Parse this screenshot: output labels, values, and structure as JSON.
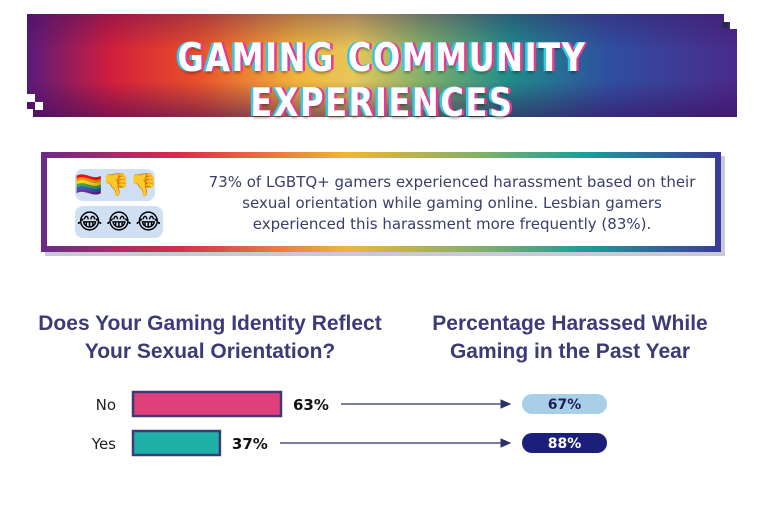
{
  "banner": {
    "title": "GAMING COMMUNITY EXPERIENCES"
  },
  "stat": {
    "emojis_row1": [
      "🏳️‍🌈",
      "👎",
      "👎"
    ],
    "emojis_row2": [
      "😂",
      "😂",
      "😂"
    ],
    "text": "73% of LGBTQ+ gamers experienced harassment based on their sexual orientation while gaming online. Lesbian gamers experienced this harassment more frequently (83%)."
  },
  "headings": {
    "left": "Does Your Gaming Identity Reflect Your Sexual Orientation?",
    "right": "Percentage Harassed While Gaming in the Past Year"
  },
  "chart_data": {
    "type": "bar",
    "categories": [
      "No",
      "Yes"
    ],
    "series": [
      {
        "values": [
          63,
          37
        ],
        "labels": [
          "63%",
          "37%"
        ],
        "colors": [
          "#e0407a",
          "#1fb0a8"
        ]
      },
      {
        "values": [
          67,
          88
        ],
        "labels": [
          "67%",
          "88%"
        ],
        "colors": [
          "#a9cfe8",
          "#1c1f7a"
        ]
      }
    ],
    "title": "",
    "xlabel": "",
    "ylabel": ""
  }
}
